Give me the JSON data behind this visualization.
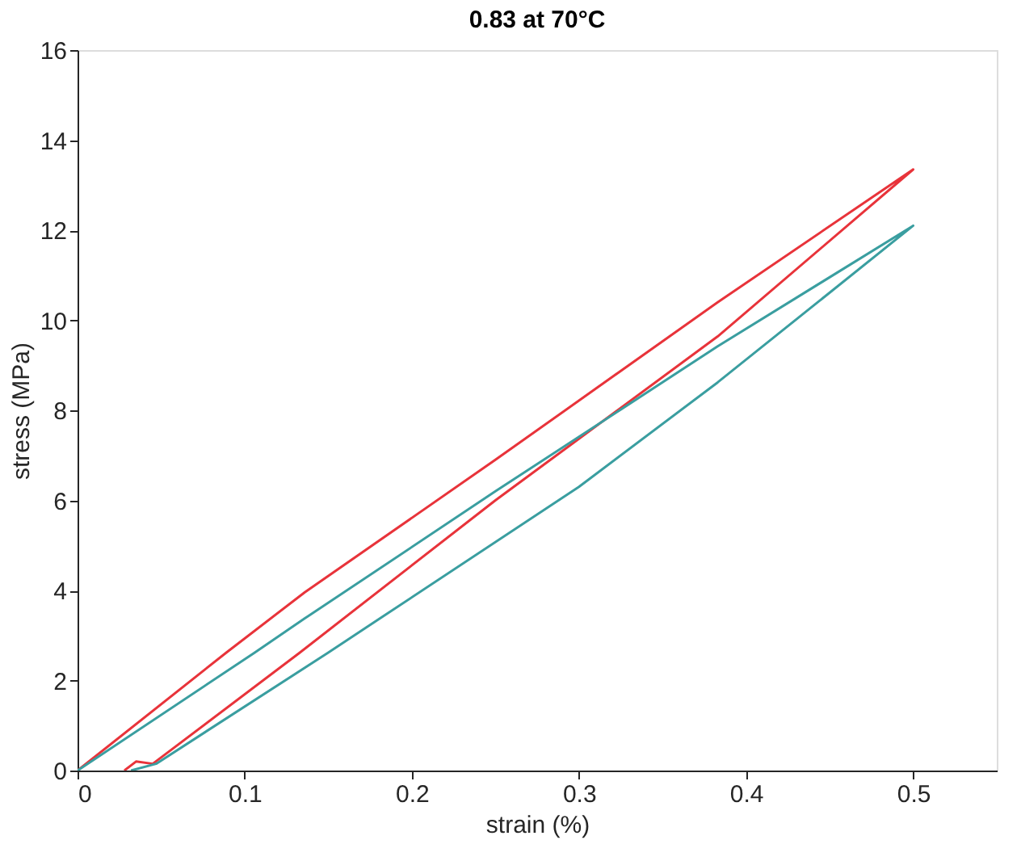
{
  "chart_data": {
    "type": "line",
    "title": "0.83 at 70°C",
    "xlabel": "strain (%)",
    "ylabel": "stress (MPa)",
    "xlim": [
      0,
      0.55
    ],
    "xticks": [
      0,
      0.1,
      0.2,
      0.3,
      0.4,
      0.5
    ],
    "ylim": [
      0,
      16
    ],
    "yticks": [
      0,
      2,
      4,
      6,
      8,
      10,
      12,
      14,
      16
    ],
    "grid": false,
    "legend": false,
    "marker": "none",
    "line_style": "solid",
    "series": [
      {
        "color": "#e8333a",
        "x": [
          0.028,
          0.035,
          0.045,
          0.133,
          0.25,
          0.383,
          0.5,
          0.383,
          0.25,
          0.136,
          0.089,
          0
        ],
        "values": [
          0,
          0.2,
          0.15,
          2.62,
          6.0,
          9.64,
          13.35,
          10.4,
          6.9,
          3.96,
          2.62,
          0
        ]
      },
      {
        "color": "#3a9ea0",
        "x": [
          0.032,
          0.047,
          0.15,
          0.3,
          0.383,
          0.5,
          0.383,
          0.25,
          0.136,
          0.106,
          0
        ],
        "values": [
          0,
          0.15,
          2.62,
          6.3,
          8.62,
          12.1,
          9.42,
          6.2,
          3.38,
          2.62,
          0
        ]
      }
    ]
  }
}
